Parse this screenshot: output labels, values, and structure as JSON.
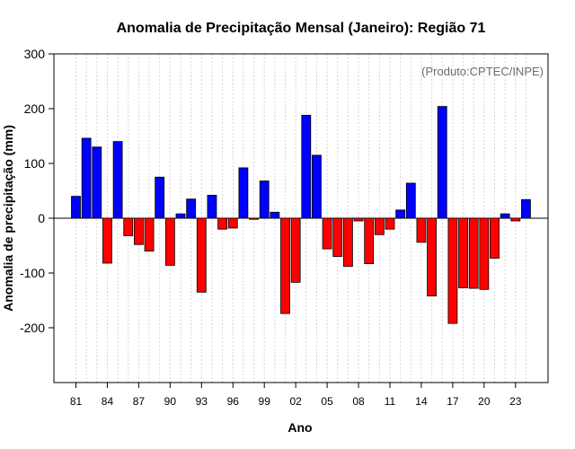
{
  "chart_data": {
    "type": "bar",
    "title": "Anomalia de Precipitação Mensal (Janeiro): Região 71",
    "xlabel": "Ano",
    "ylabel": "Anomalia de precipitação (mm)",
    "credit": "(Produto:CPTEC/INPE)",
    "ylim": [
      -300,
      300
    ],
    "yticks": [
      300,
      200,
      100,
      0,
      -100,
      -200
    ],
    "xtick_labels": [
      "81",
      "84",
      "87",
      "90",
      "93",
      "96",
      "99",
      "02",
      "05",
      "08",
      "11",
      "14",
      "17",
      "20",
      "23"
    ],
    "positive_color": "#0000ff",
    "negative_color": "#ff0000",
    "categories": [
      "1981",
      "1982",
      "1983",
      "1984",
      "1985",
      "1986",
      "1987",
      "1988",
      "1989",
      "1990",
      "1991",
      "1992",
      "1993",
      "1994",
      "1995",
      "1996",
      "1997",
      "1998",
      "1999",
      "2000",
      "2001",
      "2002",
      "2003",
      "2004",
      "2005",
      "2006",
      "2007",
      "2008",
      "2009",
      "2010",
      "2011",
      "2012",
      "2013",
      "2014",
      "2015",
      "2016",
      "2017",
      "2018",
      "2019",
      "2020",
      "2021",
      "2022",
      "2023",
      "2024"
    ],
    "values": [
      40,
      146,
      130,
      -82,
      140,
      -32,
      -48,
      -60,
      75,
      -86,
      8,
      35,
      -135,
      42,
      -20,
      -18,
      92,
      -2,
      68,
      11,
      -174,
      -117,
      188,
      115,
      -56,
      -70,
      -88,
      -5,
      -83,
      -30,
      -20,
      15,
      64,
      -44,
      -142,
      204,
      -192,
      -127,
      -128,
      -130,
      -73,
      8,
      -5,
      34
    ]
  }
}
